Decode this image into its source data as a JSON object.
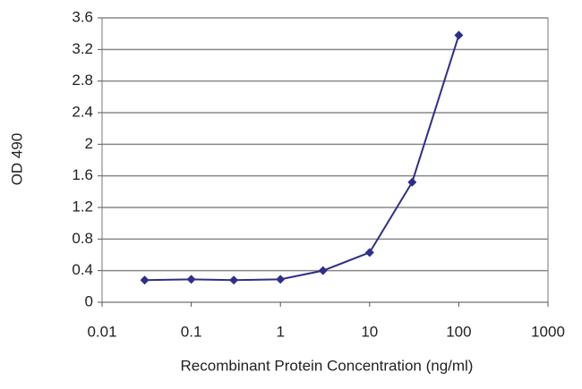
{
  "chart_data": {
    "type": "line",
    "x_label": "Recombinant Protein Concentration (ng/ml)",
    "y_label": "OD 490",
    "x": [
      0.03,
      0.1,
      0.3,
      1,
      3,
      10,
      30,
      100
    ],
    "series": [
      {
        "color": "#2e2e8c",
        "values": [
          0.28,
          0.29,
          0.28,
          0.29,
          0.4,
          0.63,
          1.52,
          3.38
        ]
      }
    ],
    "xscale": "log",
    "xlim": [
      0.01,
      1000
    ],
    "xticks": [
      0.01,
      0.1,
      1,
      10,
      100,
      1000
    ],
    "ylim": [
      0,
      3.6
    ],
    "yticks": [
      0,
      0.4,
      0.8,
      1.2,
      1.6,
      2,
      2.4,
      2.8,
      3.2,
      3.6
    ],
    "grid": true
  }
}
